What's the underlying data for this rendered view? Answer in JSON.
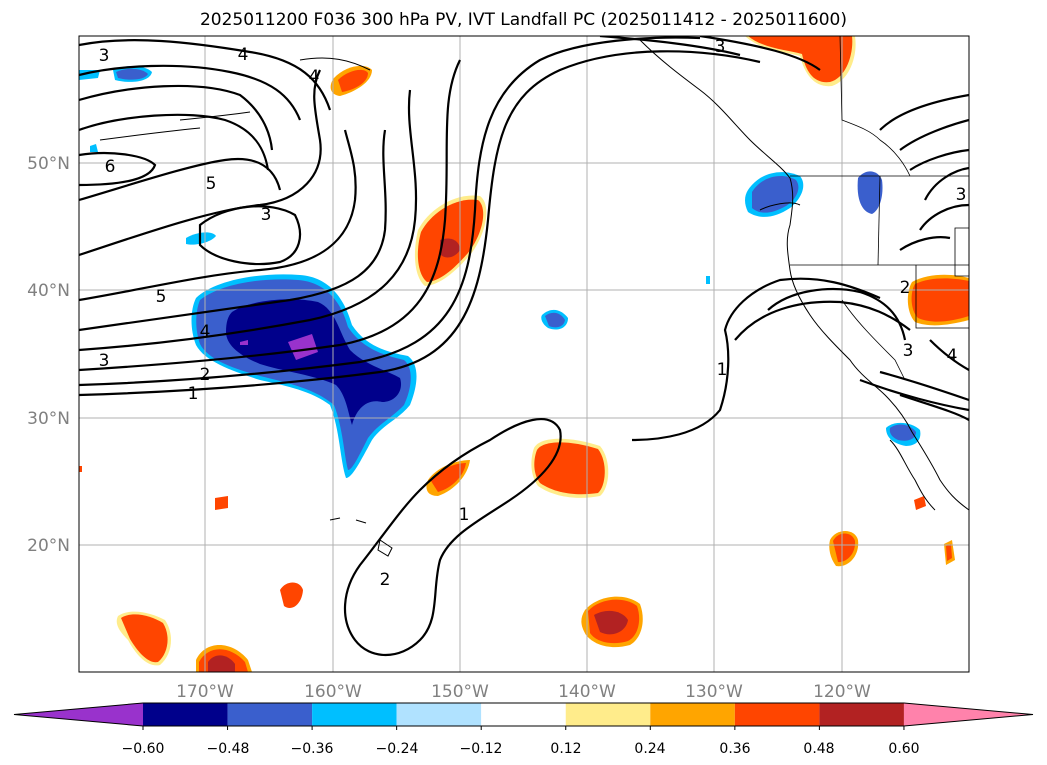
{
  "title": "2025011200 F036 300 hPa PV, IVT Landfall PC (2025011412 - 2025011600)",
  "map": {
    "lat_labels": [
      "50°N",
      "40°N",
      "30°N",
      "20°N"
    ],
    "lon_labels": [
      "170°W",
      "160°W",
      "150°W",
      "140°W",
      "130°W",
      "120°W"
    ],
    "contour_labels": [
      "3",
      "4",
      "4",
      "3",
      "6",
      "5",
      "3",
      "5",
      "4",
      "3",
      "2",
      "1",
      "1",
      "2",
      "1",
      "3",
      "2",
      "3",
      "4"
    ]
  },
  "colorbar": {
    "ticks": [
      "−0.60",
      "−0.48",
      "−0.36",
      "−0.24",
      "−0.12",
      "0.12",
      "0.24",
      "0.36",
      "0.48",
      "0.60"
    ],
    "colors": [
      "#9932cc",
      "#00008b",
      "#3a5fcd",
      "#00bfff",
      "#b0e2ff",
      "#ffffff",
      "#ffec8b",
      "#ffa500",
      "#ff4500",
      "#b22222",
      "#ff82ab"
    ]
  }
}
